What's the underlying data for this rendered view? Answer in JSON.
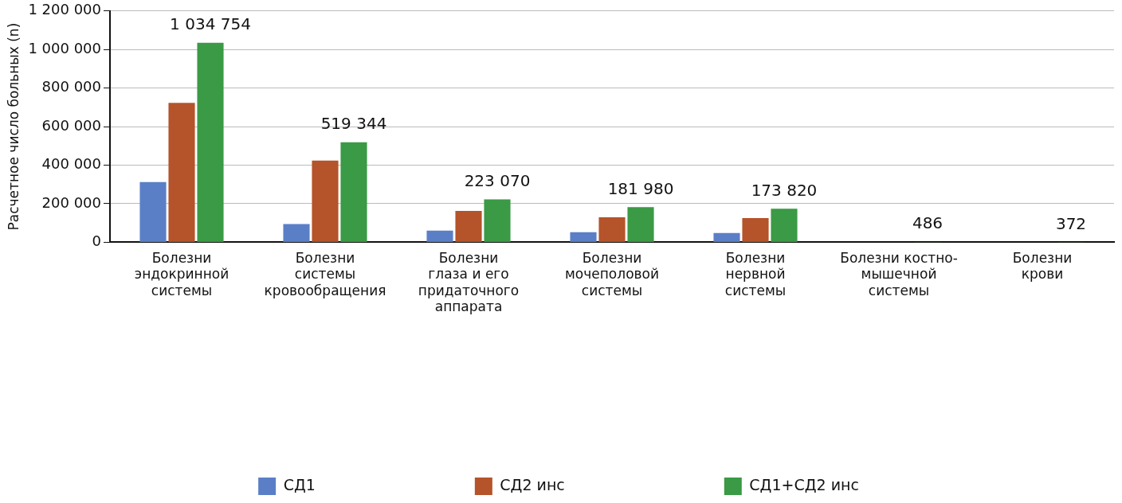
{
  "chart_data": {
    "type": "bar",
    "ylabel": "Расчетное число больных (n)",
    "categories": [
      "Болезни\nэндокринной\nсистемы",
      "Болезни\nсистемы\nкровообращения",
      "Болезни\nглаза и его\nпридаточного\nаппарата",
      "Болезни\nмочеполовой\nсистемы",
      "Болезни\nнервной\nсистемы",
      "Болезни костно-\nмышечной\nсистемы",
      "Болезни\nкрови"
    ],
    "series": [
      {
        "name": "СД1",
        "color": "#5b7fc7",
        "values": [
          312000,
          95000,
          60000,
          52000,
          48000,
          null,
          null
        ]
      },
      {
        "name": "СД2 инс",
        "color": "#b5532a",
        "values": [
          723000,
          424000,
          163000,
          130000,
          126000,
          null,
          null
        ]
      },
      {
        "name": "СД1+СД2 инс",
        "color": "#3a9a45",
        "values": [
          1034754,
          519344,
          223070,
          181980,
          173820,
          486,
          372
        ],
        "value_labels": [
          "1 034 754",
          "519 344",
          "223 070",
          "181 980",
          "173 820",
          "486",
          "372"
        ]
      }
    ],
    "ylim": [
      0,
      1200000
    ],
    "yticks": [
      {
        "value": 0,
        "label": "0"
      },
      {
        "value": 200000,
        "label": "200 000"
      },
      {
        "value": 400000,
        "label": "400 000"
      },
      {
        "value": 600000,
        "label": "600 000"
      },
      {
        "value": 800000,
        "label": "800 000"
      },
      {
        "value": 1000000,
        "label": "1 000 000"
      },
      {
        "value": 1200000,
        "label": "1 200 000"
      }
    ],
    "grid": "y",
    "legend": "bottom"
  }
}
